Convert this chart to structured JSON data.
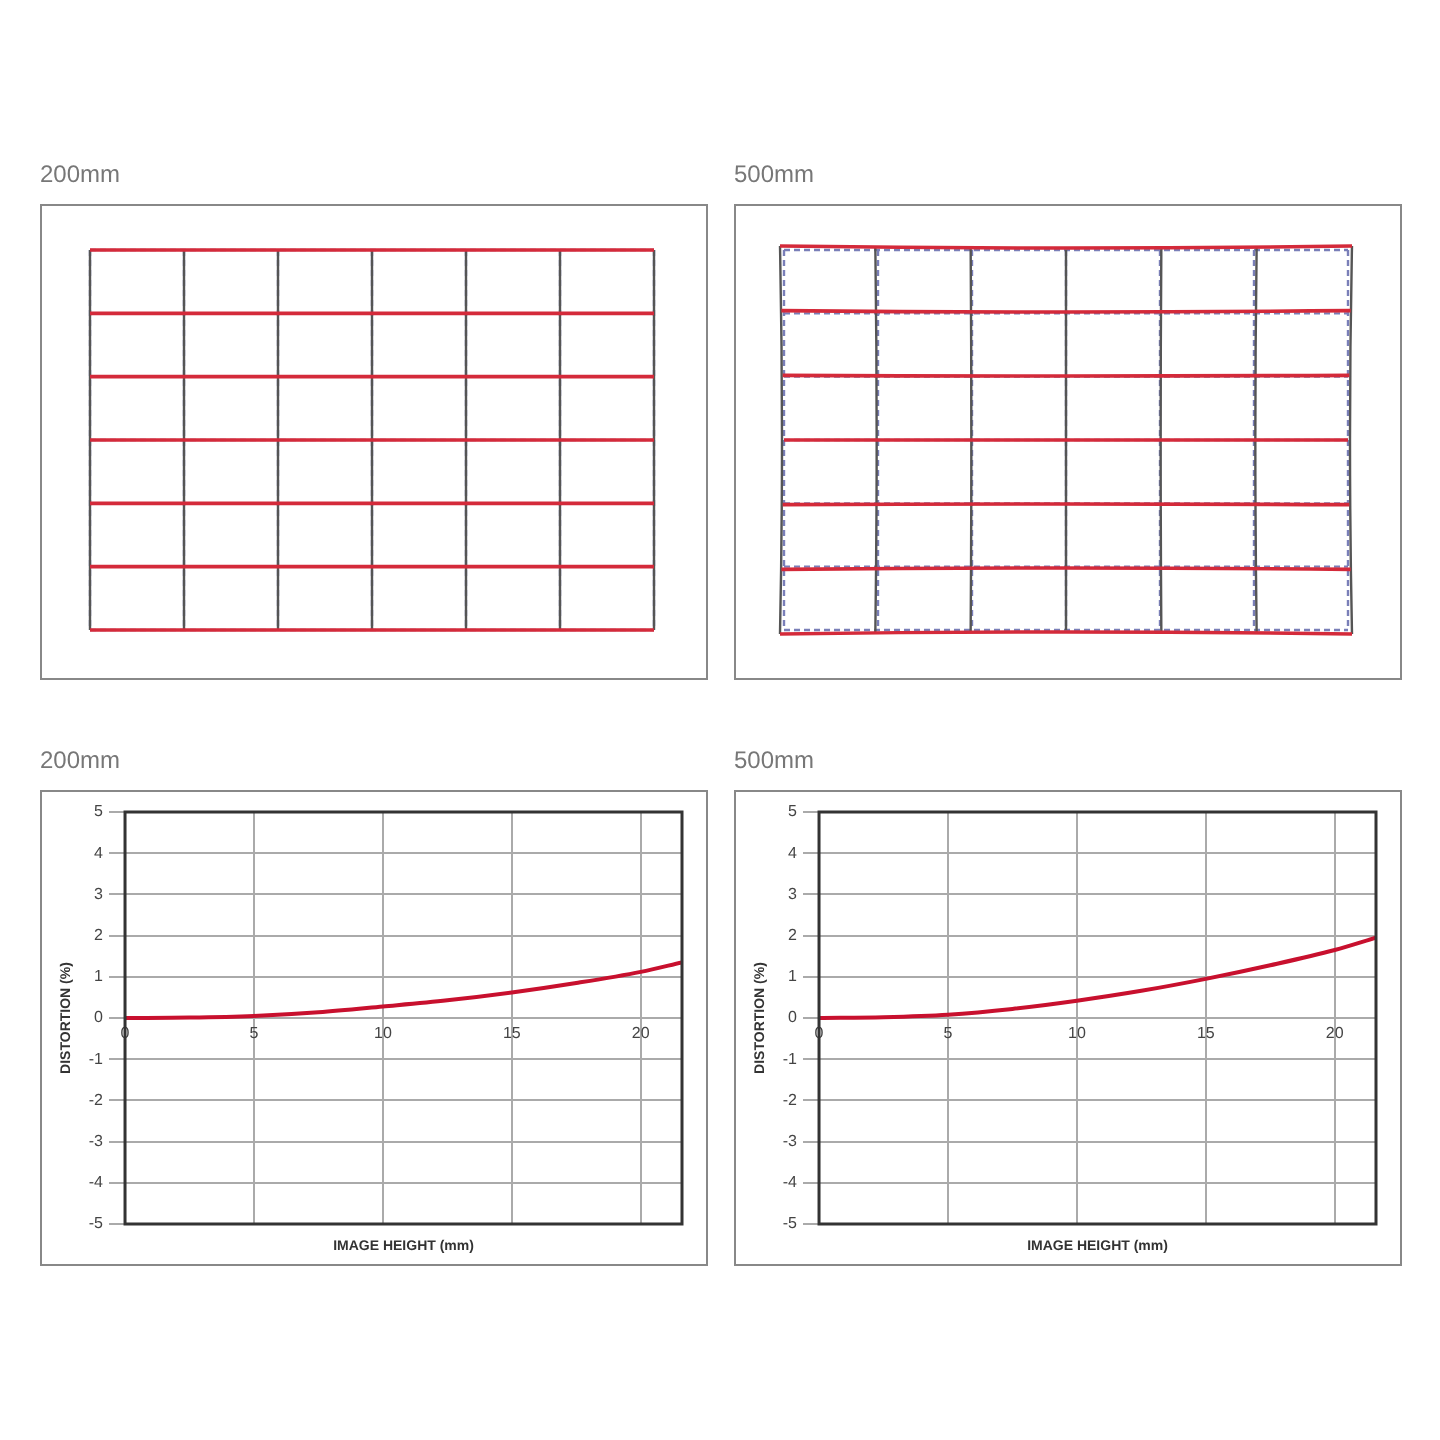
{
  "chart_data": [
    {
      "type": "other",
      "title": "200mm"
    },
    {
      "type": "other",
      "title": "500mm"
    },
    {
      "type": "line",
      "title": "200mm",
      "xlabel": "IMAGE HEIGHT (mm)",
      "ylabel": "DISTORTION (%)",
      "xlim": [
        0,
        21.6
      ],
      "xticks": [
        0,
        5,
        10,
        15,
        20
      ],
      "ylim": [
        -5,
        5
      ],
      "yticks": [
        -5,
        -4,
        -3,
        -2,
        -1,
        0,
        1,
        2,
        3,
        4,
        5
      ],
      "grid": true,
      "legend": false,
      "marker": "none",
      "x": [
        0,
        2.5,
        5,
        7.5,
        10,
        12.5,
        15,
        17.5,
        20,
        21.6
      ],
      "series": [
        {
          "color": "#c8102e",
          "values": [
            0,
            0.01,
            0.05,
            0.14,
            0.28,
            0.43,
            0.62,
            0.85,
            1.12,
            1.35
          ]
        }
      ]
    },
    {
      "type": "line",
      "title": "500mm",
      "xlabel": "IMAGE HEIGHT (mm)",
      "ylabel": "DISTORTION (%)",
      "xlim": [
        0,
        21.6
      ],
      "xticks": [
        0,
        5,
        10,
        15,
        20
      ],
      "ylim": [
        -5,
        5
      ],
      "yticks": [
        -5,
        -4,
        -3,
        -2,
        -1,
        0,
        1,
        2,
        3,
        4,
        5
      ],
      "grid": true,
      "legend": false,
      "marker": "none",
      "x": [
        0,
        2.5,
        5,
        7.5,
        10,
        12.5,
        15,
        17.5,
        20,
        21.6
      ],
      "series": [
        {
          "color": "#c8102e",
          "values": [
            0,
            0.02,
            0.08,
            0.22,
            0.42,
            0.66,
            0.95,
            1.28,
            1.65,
            1.95
          ]
        }
      ]
    }
  ]
}
